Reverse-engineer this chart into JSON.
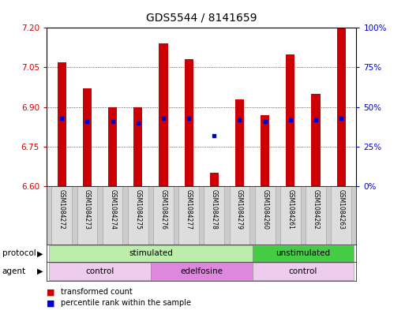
{
  "title": "GDS5544 / 8141659",
  "samples": [
    "GSM1084272",
    "GSM1084273",
    "GSM1084274",
    "GSM1084275",
    "GSM1084276",
    "GSM1084277",
    "GSM1084278",
    "GSM1084279",
    "GSM1084260",
    "GSM1084261",
    "GSM1084262",
    "GSM1084263"
  ],
  "transformed_count": [
    7.07,
    6.97,
    6.9,
    6.9,
    7.14,
    7.08,
    6.65,
    6.93,
    6.87,
    7.1,
    6.95,
    7.2
  ],
  "percentile_rank": [
    43,
    41,
    41,
    40,
    43,
    43,
    32,
    42,
    41,
    42,
    42,
    43
  ],
  "ylim_left": [
    6.6,
    7.2
  ],
  "ylim_right": [
    0,
    100
  ],
  "yticks_left": [
    6.6,
    6.75,
    6.9,
    7.05,
    7.2
  ],
  "yticks_right": [
    0,
    25,
    50,
    75,
    100
  ],
  "bar_color": "#cc0000",
  "dot_color": "#0000cc",
  "bar_width": 0.35,
  "protocol_labels": [
    {
      "text": "stimulated",
      "start": 0,
      "end": 7,
      "color": "#bbeeaa"
    },
    {
      "text": "unstimulated",
      "start": 8,
      "end": 11,
      "color": "#44cc44"
    }
  ],
  "agent_labels": [
    {
      "text": "control",
      "start": 0,
      "end": 3,
      "color": "#eeccee"
    },
    {
      "text": "edelfosine",
      "start": 4,
      "end": 7,
      "color": "#dd88dd"
    },
    {
      "text": "control",
      "start": 8,
      "end": 11,
      "color": "#eeccee"
    }
  ],
  "legend_items": [
    {
      "label": "transformed count",
      "color": "#cc0000"
    },
    {
      "label": "percentile rank within the sample",
      "color": "#0000cc"
    }
  ],
  "background_color": "#ffffff",
  "plot_bg_color": "#ffffff",
  "grid_color": "#000000",
  "axis_label_color_left": "#cc0000",
  "axis_label_color_right": "#0000cc",
  "title_fontsize": 10,
  "tick_fontsize": 7.5
}
